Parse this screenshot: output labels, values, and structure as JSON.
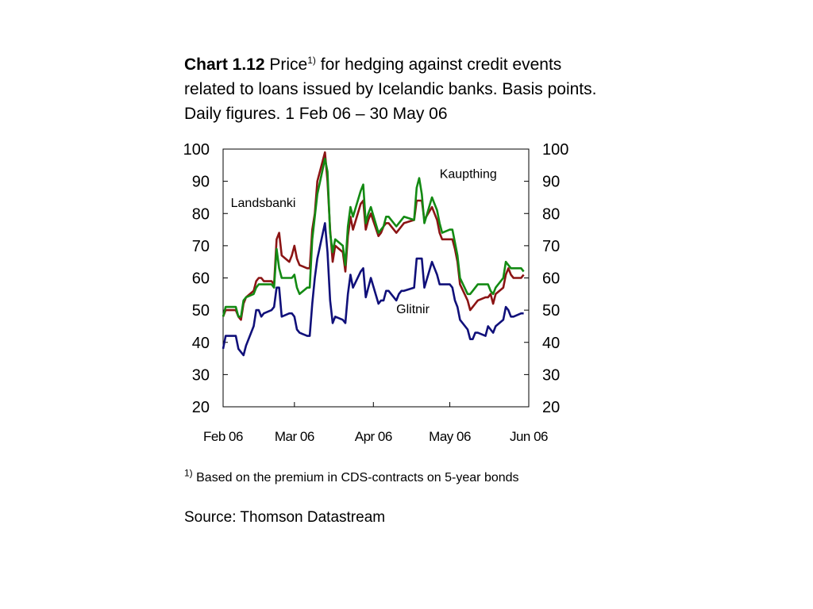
{
  "title": {
    "bold": "Chart 1.12",
    "lead": "Price",
    "sup": "1)",
    "rest": " for hedging against credit events related to loans issued by Icelandic banks. Basis points. Daily figures. 1 Feb 06 – 30 May 06"
  },
  "footnote": {
    "sup": "1)",
    "text": " Based on the premium in CDS-contracts on 5-year bonds"
  },
  "source": "Source: Thomson Datastream",
  "chart_data": {
    "type": "line",
    "ylim": [
      20,
      100
    ],
    "yticks": [
      20,
      30,
      40,
      50,
      60,
      70,
      80,
      90,
      100
    ],
    "dual_y_axis": true,
    "xlim": [
      "2006-02-01",
      "2006-06-01"
    ],
    "xticks": [
      {
        "date": "2006-02-01",
        "label": "Feb 06"
      },
      {
        "date": "2006-03-01",
        "label": "Mar 06"
      },
      {
        "date": "2006-04-01",
        "label": "Apr 06"
      },
      {
        "date": "2006-05-01",
        "label": "May 06"
      },
      {
        "date": "2006-06-01",
        "label": "Jun 06"
      }
    ],
    "grid": false,
    "annotations": [
      {
        "text": "Kaupthing",
        "x": "2006-04-27",
        "y": 91
      },
      {
        "text": "Landsbanki",
        "x": "2006-02-04",
        "y": 82
      },
      {
        "text": "Glitnir",
        "x": "2006-04-10",
        "y": 49
      }
    ],
    "series": [
      {
        "name": "Landsbanki",
        "color": "#8B1414",
        "points": [
          [
            "2006-02-01",
            48
          ],
          [
            "2006-02-02",
            50
          ],
          [
            "2006-02-03",
            50
          ],
          [
            "2006-02-06",
            50
          ],
          [
            "2006-02-07",
            48
          ],
          [
            "2006-02-08",
            47
          ],
          [
            "2006-02-09",
            52
          ],
          [
            "2006-02-10",
            54
          ],
          [
            "2006-02-13",
            56
          ],
          [
            "2006-02-14",
            59
          ],
          [
            "2006-02-15",
            60
          ],
          [
            "2006-02-16",
            60
          ],
          [
            "2006-02-17",
            59
          ],
          [
            "2006-02-20",
            59
          ],
          [
            "2006-02-21",
            58
          ],
          [
            "2006-02-22",
            72
          ],
          [
            "2006-02-23",
            74
          ],
          [
            "2006-02-24",
            67
          ],
          [
            "2006-02-27",
            65
          ],
          [
            "2006-02-28",
            67
          ],
          [
            "2006-03-01",
            70
          ],
          [
            "2006-03-02",
            66
          ],
          [
            "2006-03-03",
            64
          ],
          [
            "2006-03-06",
            63
          ],
          [
            "2006-03-07",
            63
          ],
          [
            "2006-03-08",
            75
          ],
          [
            "2006-03-09",
            80
          ],
          [
            "2006-03-10",
            90
          ],
          [
            "2006-03-13",
            99
          ],
          [
            "2006-03-14",
            90
          ],
          [
            "2006-03-15",
            75
          ],
          [
            "2006-03-16",
            65
          ],
          [
            "2006-03-17",
            70
          ],
          [
            "2006-03-20",
            68
          ],
          [
            "2006-03-21",
            62
          ],
          [
            "2006-03-22",
            73
          ],
          [
            "2006-03-23",
            79
          ],
          [
            "2006-03-24",
            75
          ],
          [
            "2006-03-27",
            83
          ],
          [
            "2006-03-28",
            84
          ],
          [
            "2006-03-29",
            75
          ],
          [
            "2006-03-30",
            78
          ],
          [
            "2006-03-31",
            80
          ],
          [
            "2006-04-03",
            73
          ],
          [
            "2006-04-04",
            74
          ],
          [
            "2006-04-05",
            76
          ],
          [
            "2006-04-06",
            77
          ],
          [
            "2006-04-07",
            77
          ],
          [
            "2006-04-10",
            74
          ],
          [
            "2006-04-11",
            75
          ],
          [
            "2006-04-12",
            76
          ],
          [
            "2006-04-13",
            77
          ],
          [
            "2006-04-17",
            78
          ],
          [
            "2006-04-18",
            84
          ],
          [
            "2006-04-19",
            84
          ],
          [
            "2006-04-20",
            84
          ],
          [
            "2006-04-21",
            78
          ],
          [
            "2006-04-24",
            82
          ],
          [
            "2006-04-25",
            80
          ],
          [
            "2006-04-26",
            78
          ],
          [
            "2006-04-27",
            74
          ],
          [
            "2006-04-28",
            72
          ],
          [
            "2006-05-01",
            72
          ],
          [
            "2006-05-02",
            72
          ],
          [
            "2006-05-03",
            69
          ],
          [
            "2006-05-04",
            65
          ],
          [
            "2006-05-05",
            58
          ],
          [
            "2006-05-08",
            53
          ],
          [
            "2006-05-09",
            50
          ],
          [
            "2006-05-10",
            51
          ],
          [
            "2006-05-11",
            52
          ],
          [
            "2006-05-12",
            53
          ],
          [
            "2006-05-15",
            54
          ],
          [
            "2006-05-16",
            54
          ],
          [
            "2006-05-17",
            55
          ],
          [
            "2006-05-18",
            52
          ],
          [
            "2006-05-19",
            55
          ],
          [
            "2006-05-22",
            57
          ],
          [
            "2006-05-23",
            61
          ],
          [
            "2006-05-24",
            63
          ],
          [
            "2006-05-25",
            61
          ],
          [
            "2006-05-26",
            60
          ],
          [
            "2006-05-29",
            60
          ],
          [
            "2006-05-30",
            61
          ]
        ]
      },
      {
        "name": "Kaupthing",
        "color": "#138A13",
        "points": [
          [
            "2006-02-01",
            48
          ],
          [
            "2006-02-02",
            51
          ],
          [
            "2006-02-03",
            51
          ],
          [
            "2006-02-06",
            51
          ],
          [
            "2006-02-07",
            48
          ],
          [
            "2006-02-08",
            48
          ],
          [
            "2006-02-09",
            53
          ],
          [
            "2006-02-10",
            54
          ],
          [
            "2006-02-13",
            55
          ],
          [
            "2006-02-14",
            57
          ],
          [
            "2006-02-15",
            58
          ],
          [
            "2006-02-16",
            58
          ],
          [
            "2006-02-17",
            58
          ],
          [
            "2006-02-20",
            58
          ],
          [
            "2006-02-21",
            57
          ],
          [
            "2006-02-22",
            69
          ],
          [
            "2006-02-23",
            63
          ],
          [
            "2006-02-24",
            60
          ],
          [
            "2006-02-27",
            60
          ],
          [
            "2006-02-28",
            60
          ],
          [
            "2006-03-01",
            61
          ],
          [
            "2006-03-02",
            57
          ],
          [
            "2006-03-03",
            55
          ],
          [
            "2006-03-06",
            57
          ],
          [
            "2006-03-07",
            57
          ],
          [
            "2006-03-08",
            72
          ],
          [
            "2006-03-09",
            79
          ],
          [
            "2006-03-10",
            86
          ],
          [
            "2006-03-13",
            97
          ],
          [
            "2006-03-14",
            93
          ],
          [
            "2006-03-15",
            74
          ],
          [
            "2006-03-16",
            68
          ],
          [
            "2006-03-17",
            72
          ],
          [
            "2006-03-20",
            70
          ],
          [
            "2006-03-21",
            64
          ],
          [
            "2006-03-22",
            76
          ],
          [
            "2006-03-23",
            82
          ],
          [
            "2006-03-24",
            79
          ],
          [
            "2006-03-27",
            87
          ],
          [
            "2006-03-28",
            89
          ],
          [
            "2006-03-29",
            77
          ],
          [
            "2006-03-30",
            80
          ],
          [
            "2006-03-31",
            82
          ],
          [
            "2006-04-03",
            74
          ],
          [
            "2006-04-04",
            75
          ],
          [
            "2006-04-05",
            76
          ],
          [
            "2006-04-06",
            79
          ],
          [
            "2006-04-07",
            79
          ],
          [
            "2006-04-10",
            76
          ],
          [
            "2006-04-11",
            77
          ],
          [
            "2006-04-12",
            78
          ],
          [
            "2006-04-13",
            79
          ],
          [
            "2006-04-17",
            78
          ],
          [
            "2006-04-18",
            88
          ],
          [
            "2006-04-19",
            91
          ],
          [
            "2006-04-20",
            86
          ],
          [
            "2006-04-21",
            77
          ],
          [
            "2006-04-24",
            85
          ],
          [
            "2006-04-25",
            83
          ],
          [
            "2006-04-26",
            81
          ],
          [
            "2006-04-27",
            77
          ],
          [
            "2006-04-28",
            74
          ],
          [
            "2006-05-01",
            75
          ],
          [
            "2006-05-02",
            75
          ],
          [
            "2006-05-03",
            71
          ],
          [
            "2006-05-04",
            67
          ],
          [
            "2006-05-05",
            60
          ],
          [
            "2006-05-08",
            55
          ],
          [
            "2006-05-09",
            55
          ],
          [
            "2006-05-10",
            56
          ],
          [
            "2006-05-11",
            57
          ],
          [
            "2006-05-12",
            58
          ],
          [
            "2006-05-15",
            58
          ],
          [
            "2006-05-16",
            58
          ],
          [
            "2006-05-17",
            56
          ],
          [
            "2006-05-18",
            55
          ],
          [
            "2006-05-19",
            57
          ],
          [
            "2006-05-22",
            60
          ],
          [
            "2006-05-23",
            65
          ],
          [
            "2006-05-24",
            64
          ],
          [
            "2006-05-25",
            63
          ],
          [
            "2006-05-26",
            63
          ],
          [
            "2006-05-29",
            63
          ],
          [
            "2006-05-30",
            62
          ]
        ]
      },
      {
        "name": "Glitnir",
        "color": "#10107A",
        "points": [
          [
            "2006-02-01",
            38
          ],
          [
            "2006-02-02",
            42
          ],
          [
            "2006-02-03",
            42
          ],
          [
            "2006-02-06",
            42
          ],
          [
            "2006-02-07",
            38
          ],
          [
            "2006-02-08",
            37
          ],
          [
            "2006-02-09",
            36
          ],
          [
            "2006-02-10",
            39
          ],
          [
            "2006-02-13",
            45
          ],
          [
            "2006-02-14",
            50
          ],
          [
            "2006-02-15",
            50
          ],
          [
            "2006-02-16",
            48
          ],
          [
            "2006-02-17",
            49
          ],
          [
            "2006-02-20",
            50
          ],
          [
            "2006-02-21",
            51
          ],
          [
            "2006-02-22",
            57
          ],
          [
            "2006-02-23",
            57
          ],
          [
            "2006-02-24",
            48
          ],
          [
            "2006-02-27",
            49
          ],
          [
            "2006-02-28",
            49
          ],
          [
            "2006-03-01",
            48
          ],
          [
            "2006-03-02",
            44
          ],
          [
            "2006-03-03",
            43
          ],
          [
            "2006-03-06",
            42
          ],
          [
            "2006-03-07",
            42
          ],
          [
            "2006-03-08",
            52
          ],
          [
            "2006-03-09",
            60
          ],
          [
            "2006-03-10",
            66
          ],
          [
            "2006-03-13",
            77
          ],
          [
            "2006-03-14",
            68
          ],
          [
            "2006-03-15",
            53
          ],
          [
            "2006-03-16",
            46
          ],
          [
            "2006-03-17",
            48
          ],
          [
            "2006-03-20",
            47
          ],
          [
            "2006-03-21",
            46
          ],
          [
            "2006-03-22",
            55
          ],
          [
            "2006-03-23",
            61
          ],
          [
            "2006-03-24",
            57
          ],
          [
            "2006-03-27",
            62
          ],
          [
            "2006-03-28",
            63
          ],
          [
            "2006-03-29",
            54
          ],
          [
            "2006-03-30",
            57
          ],
          [
            "2006-03-31",
            60
          ],
          [
            "2006-04-03",
            52
          ],
          [
            "2006-04-04",
            53
          ],
          [
            "2006-04-05",
            53
          ],
          [
            "2006-04-06",
            56
          ],
          [
            "2006-04-07",
            56
          ],
          [
            "2006-04-10",
            53
          ],
          [
            "2006-04-11",
            55
          ],
          [
            "2006-04-12",
            56
          ],
          [
            "2006-04-13",
            56
          ],
          [
            "2006-04-17",
            57
          ],
          [
            "2006-04-18",
            66
          ],
          [
            "2006-04-19",
            66
          ],
          [
            "2006-04-20",
            66
          ],
          [
            "2006-04-21",
            57
          ],
          [
            "2006-04-24",
            65
          ],
          [
            "2006-04-25",
            63
          ],
          [
            "2006-04-26",
            61
          ],
          [
            "2006-04-27",
            58
          ],
          [
            "2006-04-28",
            58
          ],
          [
            "2006-05-01",
            58
          ],
          [
            "2006-05-02",
            57
          ],
          [
            "2006-05-03",
            53
          ],
          [
            "2006-05-04",
            51
          ],
          [
            "2006-05-05",
            47
          ],
          [
            "2006-05-08",
            44
          ],
          [
            "2006-05-09",
            41
          ],
          [
            "2006-05-10",
            41
          ],
          [
            "2006-05-11",
            43
          ],
          [
            "2006-05-12",
            43
          ],
          [
            "2006-05-15",
            42
          ],
          [
            "2006-05-16",
            45
          ],
          [
            "2006-05-17",
            44
          ],
          [
            "2006-05-18",
            43
          ],
          [
            "2006-05-19",
            45
          ],
          [
            "2006-05-22",
            47
          ],
          [
            "2006-05-23",
            51
          ],
          [
            "2006-05-24",
            50
          ],
          [
            "2006-05-25",
            48
          ],
          [
            "2006-05-26",
            48
          ],
          [
            "2006-05-29",
            49
          ],
          [
            "2006-05-30",
            49
          ]
        ]
      }
    ]
  }
}
